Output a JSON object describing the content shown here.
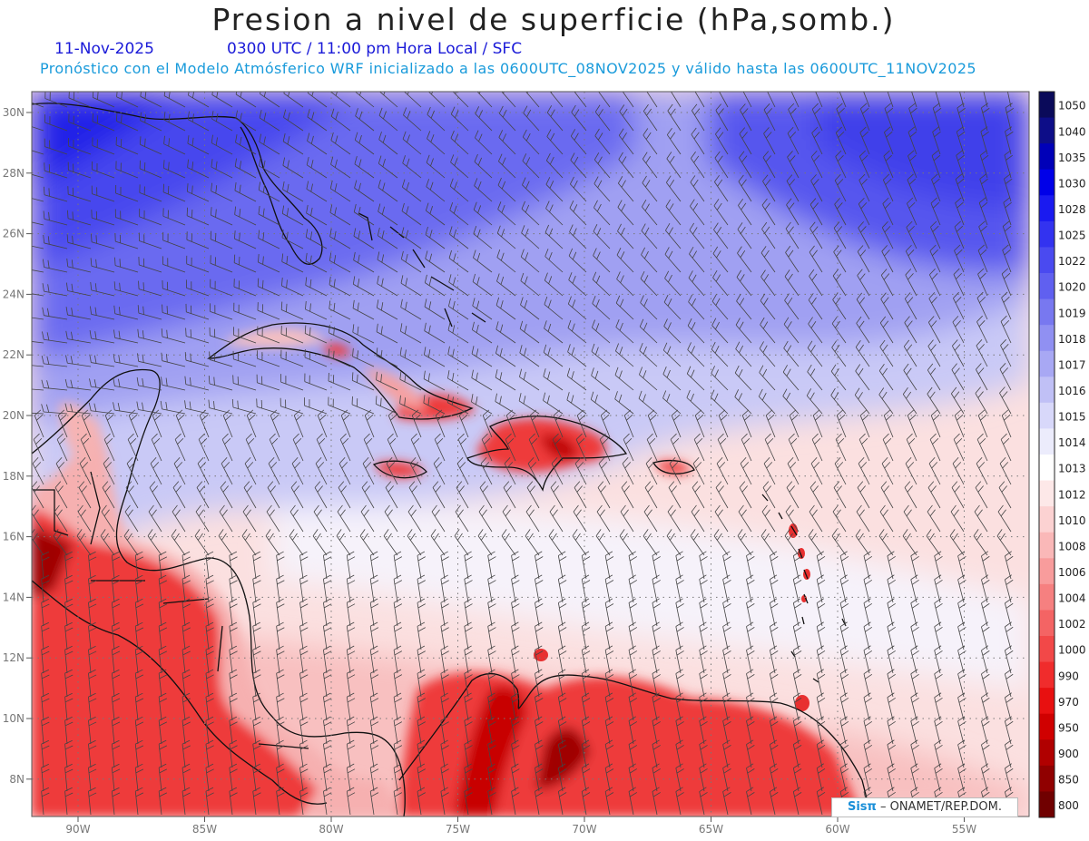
{
  "header": {
    "title": "Presion a nivel de superficie (hPa,somb.)",
    "date": "11-Nov-2025",
    "valid_time": "0300 UTC / 11:00 pm Hora Local / SFC",
    "description": "Pronóstico con el Modelo Atmósferico WRF inicializado a las 0600UTC_08NOV2025 y válido hasta las  0600UTC_11NOV2025"
  },
  "map": {
    "lat_labels": [
      "30N",
      "28N",
      "26N",
      "24N",
      "22N",
      "20N",
      "18N",
      "16N",
      "14N",
      "12N",
      "10N",
      "8N"
    ],
    "lon_labels": [
      "90W",
      "85W",
      "80W",
      "75W",
      "70W",
      "65W",
      "60W",
      "55W"
    ]
  },
  "colorbar": {
    "levels": [
      "1050",
      "1040",
      "1035",
      "1030",
      "1028",
      "1025",
      "1022",
      "1020",
      "1019",
      "1018",
      "1017",
      "1016",
      "1015",
      "1014",
      "1013",
      "1012",
      "1010",
      "1008",
      "1006",
      "1004",
      "1002",
      "1000",
      "990",
      "970",
      "950",
      "900",
      "850",
      "800"
    ],
    "colors": [
      "#0a0a5a",
      "#0d0d88",
      "#0000b8",
      "#0000e8",
      "#1a1af0",
      "#3333f0",
      "#4a4af0",
      "#6060f0",
      "#7878f0",
      "#9090f2",
      "#a8a8f4",
      "#c0c0f6",
      "#d8d8fa",
      "#ececfc",
      "#ffffff",
      "#fde8e8",
      "#fcd2d2",
      "#fab8b8",
      "#f89c9c",
      "#f68080",
      "#f46464",
      "#f24848",
      "#f02c2c",
      "#e81010",
      "#d00000",
      "#b00000",
      "#900000",
      "#700000"
    ]
  },
  "credit": {
    "brand": "Sisπ",
    "text": "– ONAMET/REP.DOM."
  }
}
